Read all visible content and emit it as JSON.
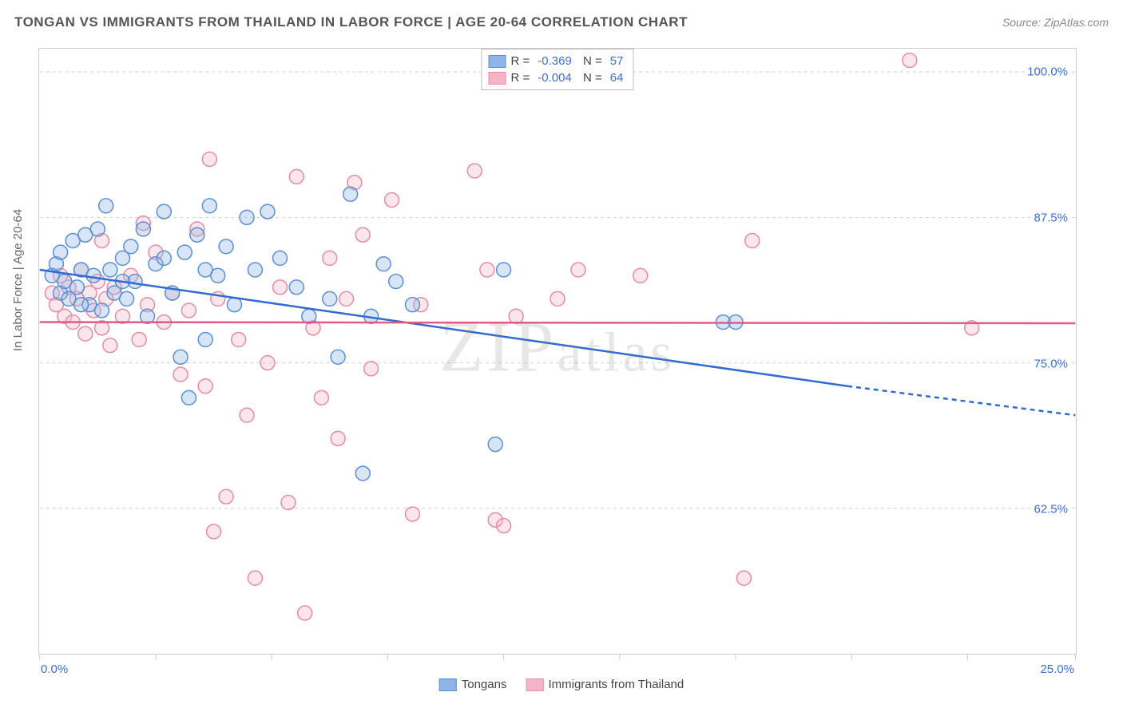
{
  "title": "TONGAN VS IMMIGRANTS FROM THAILAND IN LABOR FORCE | AGE 20-64 CORRELATION CHART",
  "source": "Source: ZipAtlas.com",
  "watermark": "ZIPatlas",
  "ylabel": "In Labor Force | Age 20-64",
  "chart": {
    "type": "scatter",
    "background_color": "#ffffff",
    "grid_color": "#d0d0d0",
    "border_color": "#cccccc",
    "label_fontsize": 15,
    "title_fontsize": 17,
    "value_color": "#3b6fd6",
    "xlim": [
      0,
      25
    ],
    "ylim": [
      50,
      102
    ],
    "xtick_labels": {
      "0": "0.0%",
      "25": "25.0%"
    },
    "xtick_positions": [
      0,
      2.8,
      5.6,
      8.4,
      11.2,
      14.0,
      16.8,
      19.6,
      22.4,
      25.0
    ],
    "ytick_labels": {
      "62.5": "62.5%",
      "75.0": "75.0%",
      "87.5": "87.5%",
      "100.0": "100.0%"
    },
    "ytick_positions": [
      62.5,
      75.0,
      87.5,
      100.0
    ],
    "marker_radius": 9,
    "marker_fill_opacity": 0.35,
    "marker_stroke_width": 1.5,
    "trendline_width": 2.5
  },
  "series": [
    {
      "name": "Tongans",
      "color": "#8fb4e8",
      "stroke": "#5a8fd6",
      "line_color": "#2f6bd0",
      "R": "-0.369",
      "N": "57",
      "trend": {
        "x1": 0,
        "y1": 83.0,
        "x2": 19.5,
        "y2": 73.0,
        "x2_dash": 25,
        "y2_dash": 70.5
      },
      "points": [
        [
          0.3,
          82.5
        ],
        [
          0.4,
          83.5
        ],
        [
          0.5,
          81.0
        ],
        [
          0.5,
          84.5
        ],
        [
          0.6,
          82.0
        ],
        [
          0.7,
          80.5
        ],
        [
          0.8,
          85.5
        ],
        [
          0.9,
          81.5
        ],
        [
          1.0,
          83.0
        ],
        [
          1.1,
          86.0
        ],
        [
          1.2,
          80.0
        ],
        [
          1.3,
          82.5
        ],
        [
          1.4,
          86.5
        ],
        [
          1.5,
          79.5
        ],
        [
          1.6,
          88.5
        ],
        [
          1.7,
          83.0
        ],
        [
          1.8,
          81.0
        ],
        [
          2.0,
          84.0
        ],
        [
          2.1,
          80.5
        ],
        [
          2.2,
          85.0
        ],
        [
          2.3,
          82.0
        ],
        [
          2.5,
          86.5
        ],
        [
          2.6,
          79.0
        ],
        [
          2.8,
          83.5
        ],
        [
          3.0,
          88.0
        ],
        [
          3.2,
          81.0
        ],
        [
          3.4,
          75.5
        ],
        [
          3.5,
          84.5
        ],
        [
          3.6,
          72.0
        ],
        [
          3.8,
          86.0
        ],
        [
          4.0,
          77.0
        ],
        [
          4.1,
          88.5
        ],
        [
          4.3,
          82.5
        ],
        [
          4.5,
          85.0
        ],
        [
          4.7,
          80.0
        ],
        [
          5.0,
          87.5
        ],
        [
          5.2,
          83.0
        ],
        [
          5.5,
          88.0
        ],
        [
          5.8,
          84.0
        ],
        [
          6.2,
          81.5
        ],
        [
          6.5,
          79.0
        ],
        [
          7.0,
          80.5
        ],
        [
          7.2,
          75.5
        ],
        [
          7.5,
          89.5
        ],
        [
          7.8,
          65.5
        ],
        [
          8.0,
          79.0
        ],
        [
          8.3,
          83.5
        ],
        [
          8.6,
          82.0
        ],
        [
          9.0,
          80.0
        ],
        [
          11.0,
          68.0
        ],
        [
          11.2,
          83.0
        ],
        [
          16.5,
          78.5
        ],
        [
          16.8,
          78.5
        ],
        [
          4.0,
          83.0
        ],
        [
          3.0,
          84.0
        ],
        [
          1.0,
          80.0
        ],
        [
          2.0,
          82.0
        ]
      ]
    },
    {
      "name": "Immigrants from Thailand",
      "color": "#f4b6c6",
      "stroke": "#e88ba5",
      "line_color": "#e05a8a",
      "R": "-0.004",
      "N": "64",
      "trend": {
        "x1": 0,
        "y1": 78.5,
        "x2": 25,
        "y2": 78.4
      },
      "points": [
        [
          0.3,
          81.0
        ],
        [
          0.4,
          80.0
        ],
        [
          0.5,
          82.5
        ],
        [
          0.6,
          79.0
        ],
        [
          0.7,
          81.5
        ],
        [
          0.8,
          78.5
        ],
        [
          0.9,
          80.5
        ],
        [
          1.0,
          83.0
        ],
        [
          1.1,
          77.5
        ],
        [
          1.2,
          81.0
        ],
        [
          1.3,
          79.5
        ],
        [
          1.4,
          82.0
        ],
        [
          1.5,
          78.0
        ],
        [
          1.6,
          80.5
        ],
        [
          1.7,
          76.5
        ],
        [
          1.8,
          81.5
        ],
        [
          2.0,
          79.0
        ],
        [
          2.2,
          82.5
        ],
        [
          2.4,
          77.0
        ],
        [
          2.6,
          80.0
        ],
        [
          2.8,
          84.5
        ],
        [
          3.0,
          78.5
        ],
        [
          3.2,
          81.0
        ],
        [
          3.4,
          74.0
        ],
        [
          3.6,
          79.5
        ],
        [
          3.8,
          86.5
        ],
        [
          4.0,
          73.0
        ],
        [
          4.1,
          92.5
        ],
        [
          4.2,
          60.5
        ],
        [
          4.3,
          80.5
        ],
        [
          4.5,
          63.5
        ],
        [
          4.8,
          77.0
        ],
        [
          5.0,
          70.5
        ],
        [
          5.2,
          56.5
        ],
        [
          5.5,
          75.0
        ],
        [
          5.8,
          81.5
        ],
        [
          6.0,
          63.0
        ],
        [
          6.2,
          91.0
        ],
        [
          6.4,
          53.5
        ],
        [
          6.6,
          78.0
        ],
        [
          6.8,
          72.0
        ],
        [
          7.0,
          84.0
        ],
        [
          7.2,
          68.5
        ],
        [
          7.4,
          80.5
        ],
        [
          7.6,
          90.5
        ],
        [
          7.8,
          86.0
        ],
        [
          8.0,
          74.5
        ],
        [
          8.5,
          89.0
        ],
        [
          9.0,
          62.0
        ],
        [
          9.2,
          80.0
        ],
        [
          10.5,
          91.5
        ],
        [
          10.8,
          83.0
        ],
        [
          11.0,
          61.5
        ],
        [
          11.2,
          61.0
        ],
        [
          11.5,
          79.0
        ],
        [
          12.5,
          80.5
        ],
        [
          13.0,
          83.0
        ],
        [
          14.5,
          82.5
        ],
        [
          17.0,
          56.5
        ],
        [
          17.2,
          85.5
        ],
        [
          21.0,
          101.0
        ],
        [
          22.5,
          78.0
        ],
        [
          1.5,
          85.5
        ],
        [
          2.5,
          87.0
        ]
      ]
    }
  ],
  "legend_bottom": [
    {
      "label": "Tongans",
      "swatch_fill": "#8fb4e8",
      "swatch_stroke": "#5a8fd6"
    },
    {
      "label": "Immigrants from Thailand",
      "swatch_fill": "#f4b6c6",
      "swatch_stroke": "#e88ba5"
    }
  ]
}
